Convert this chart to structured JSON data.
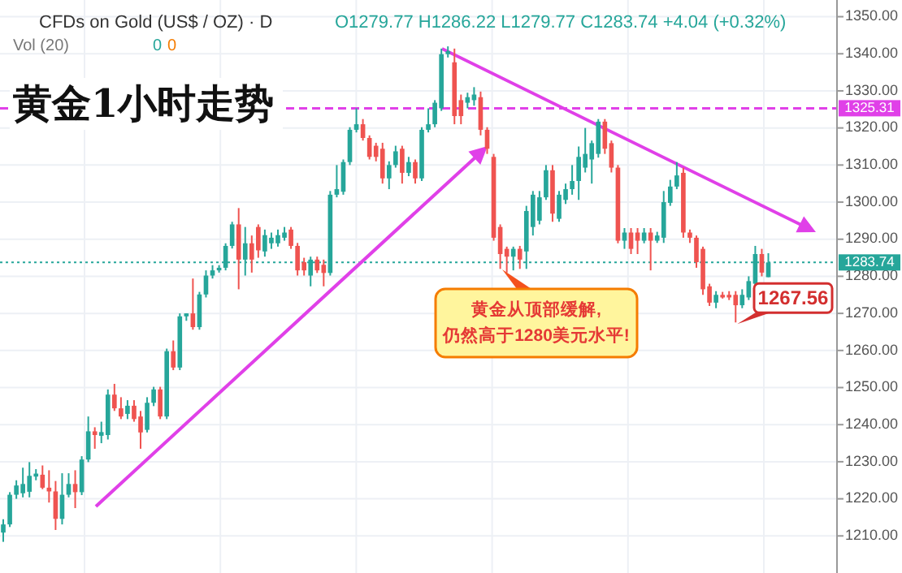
{
  "chart_data": {
    "type": "candlestick",
    "title": "黄金1小时走势",
    "subtitle": "CFDs on Gold (US$ / OZ) · D",
    "annotations": [
      "O1279.77 H1286.22 L1279.77 C1283.74 +4.04 (+0.32%)",
      "Vol (20)",
      "0",
      "0",
      "黄金从顶部缓解,\n仍然高于1280美元水平!",
      "1267.56"
    ],
    "categories": [
      null,
      null,
      null,
      null,
      null,
      null,
      null,
      null,
      null,
      null,
      null,
      null,
      null,
      null,
      null,
      null,
      null,
      null,
      null,
      null,
      null,
      null,
      null,
      null,
      null,
      null,
      null,
      null,
      null,
      null,
      null,
      null,
      null,
      null,
      null,
      null,
      null,
      null,
      null,
      null,
      null,
      null,
      null,
      null,
      null,
      null,
      null,
      null,
      null,
      null,
      null,
      null,
      null,
      null,
      null,
      null,
      null,
      null,
      null,
      null,
      null,
      null,
      null,
      null,
      null,
      null,
      null,
      null,
      null,
      null,
      null,
      null,
      null,
      null,
      null,
      null,
      null,
      null,
      null,
      null,
      null,
      null,
      null,
      null,
      null,
      null,
      null,
      null,
      null,
      null,
      null,
      null,
      null,
      null,
      null,
      null,
      null,
      null,
      null,
      null,
      null,
      null,
      null,
      null,
      null,
      null,
      null,
      null,
      null,
      null,
      null,
      null,
      null,
      null,
      null,
      null,
      null,
      null,
      null,
      null,
      null,
      null,
      null,
      null,
      null,
      null,
      null,
      null
    ],
    "ohlc": [
      [
        1210.9,
        1214.5,
        1208.4,
        1213.1
      ],
      [
        1213.1,
        1221.8,
        1212.4,
        1221.1
      ],
      [
        1221.1,
        1225,
        1220,
        1223.6
      ],
      [
        1221.5,
        1228.4,
        1220.4,
        1224
      ],
      [
        1221.9,
        1229.9,
        1220.4,
        1226.2
      ],
      [
        1226,
        1228,
        1225,
        1226.8
      ],
      [
        1226.5,
        1229,
        1222.6,
        1223
      ],
      [
        1223,
        1227.7,
        1219,
        1222
      ],
      [
        1222,
        1224.8,
        1211.6,
        1214.6
      ],
      [
        1214.6,
        1226.9,
        1213.1,
        1221.1
      ],
      [
        1221.1,
        1226.9,
        1220.4,
        1224
      ],
      [
        1224,
        1227.7,
        1217.5,
        1221.8
      ],
      [
        1221.8,
        1231.5,
        1221,
        1230.6
      ],
      [
        1230.6,
        1242.2,
        1229.9,
        1238.2
      ],
      [
        1238.2,
        1239.3,
        1233.5,
        1237.2
      ],
      [
        1237,
        1240.8,
        1235,
        1238
      ],
      [
        1237.2,
        1249.5,
        1236,
        1248.1
      ],
      [
        1248.1,
        1251,
        1243.7,
        1244.4
      ],
      [
        1244.4,
        1247.4,
        1241.5,
        1242.2
      ],
      [
        1242.9,
        1246.6,
        1241.5,
        1245.1
      ],
      [
        1245.1,
        1246.6,
        1240.8,
        1241.5
      ],
      [
        1242.2,
        1243.7,
        1233.5,
        1237.9
      ],
      [
        1238.6,
        1247.4,
        1237.9,
        1245.9
      ],
      [
        1245.9,
        1250.2,
        1245,
        1249.5
      ],
      [
        1249.5,
        1250.2,
        1241.5,
        1242.2
      ],
      [
        1242.2,
        1260.5,
        1241.5,
        1259.8
      ],
      [
        1259.8,
        1262.7,
        1254.7,
        1255.4
      ],
      [
        1255.4,
        1270,
        1254.7,
        1269.2
      ],
      [
        1269.2,
        1270,
        1268,
        1270
      ],
      [
        1270,
        1279.4,
        1265.6,
        1266.3
      ],
      [
        1266.3,
        1275.8,
        1265.6,
        1275.1
      ],
      [
        1275.1,
        1281.6,
        1274.3,
        1280.2
      ],
      [
        1280.2,
        1283,
        1279.4,
        1281.6
      ],
      [
        1281.6,
        1283,
        1281,
        1282.3
      ],
      [
        1282.3,
        1288.9,
        1281.6,
        1288.2
      ],
      [
        1288.2,
        1294.7,
        1287.5,
        1294
      ],
      [
        1294,
        1298.4,
        1276.5,
        1284.5
      ],
      [
        1284.5,
        1293.3,
        1280.2,
        1288.9
      ],
      [
        1288.9,
        1291,
        1281,
        1284.5
      ],
      [
        1293.3,
        1294,
        1285,
        1287
      ],
      [
        1286.7,
        1292.6,
        1285.3,
        1291.1
      ],
      [
        1288.9,
        1291.8,
        1287.4,
        1290.4
      ],
      [
        1288.9,
        1292.6,
        1288,
        1291.1
      ],
      [
        1290.4,
        1293.3,
        1289.6,
        1291.8
      ],
      [
        1292.6,
        1293.3,
        1287.4,
        1288.2
      ],
      [
        1288.2,
        1289,
        1280.2,
        1281.6
      ],
      [
        1283.8,
        1285,
        1280.2,
        1281.6
      ],
      [
        1280.2,
        1285.3,
        1277.3,
        1284.5
      ],
      [
        1284.5,
        1285.3,
        1280.9,
        1281.6
      ],
      [
        1283.1,
        1284.5,
        1277.3,
        1280.9
      ],
      [
        1280.9,
        1303,
        1280.2,
        1302
      ],
      [
        1302,
        1310,
        1301.3,
        1303.5
      ],
      [
        1302.8,
        1311.5,
        1302,
        1310.8
      ],
      [
        1310.8,
        1320.2,
        1310,
        1319.5
      ],
      [
        1319.5,
        1325.3,
        1318.8,
        1321
      ],
      [
        1321,
        1322.4,
        1316.6,
        1317.3
      ],
      [
        1317.3,
        1318,
        1311.5,
        1312.2
      ],
      [
        1315.2,
        1316,
        1311,
        1312.2
      ],
      [
        1314.4,
        1316,
        1305,
        1306.4
      ],
      [
        1306.4,
        1311,
        1303.5,
        1310
      ],
      [
        1310,
        1315.2,
        1309.3,
        1313.7
      ],
      [
        1314.4,
        1315.2,
        1305,
        1307.9
      ],
      [
        1307.9,
        1312.2,
        1307,
        1310.8
      ],
      [
        1310.8,
        1311.5,
        1305,
        1306.4
      ],
      [
        1306.4,
        1320.2,
        1305.7,
        1319.5
      ],
      [
        1319.5,
        1325.3,
        1318.8,
        1321
      ],
      [
        1321,
        1327.5,
        1320.2,
        1326.8
      ],
      [
        1325.3,
        1341.4,
        1324.6,
        1339.9
      ],
      [
        1339.9,
        1342,
        1339,
        1340.7
      ],
      [
        1337.7,
        1341.4,
        1321,
        1323.2
      ],
      [
        1327.5,
        1329,
        1321,
        1323.2
      ],
      [
        1326.8,
        1329.5,
        1325.3,
        1328.3
      ],
      [
        1327.5,
        1331,
        1326,
        1329
      ],
      [
        1328.3,
        1329.8,
        1318,
        1319.5
      ],
      [
        1319.5,
        1320.2,
        1313,
        1314.4
      ],
      [
        1312.2,
        1313,
        1289.6,
        1290.4
      ],
      [
        1293.3,
        1294,
        1282,
        1286
      ],
      [
        1287.4,
        1288,
        1281,
        1285.3
      ],
      [
        1285.3,
        1288,
        1281.6,
        1287.4
      ],
      [
        1287.4,
        1288.2,
        1282,
        1284.5
      ],
      [
        1286.7,
        1299,
        1282,
        1297.6
      ],
      [
        1293.3,
        1303,
        1291,
        1302
      ],
      [
        1295,
        1303,
        1294,
        1301.3
      ],
      [
        1301.3,
        1310,
        1300.6,
        1308.6
      ],
      [
        1308.6,
        1310,
        1294.7,
        1296.9
      ],
      [
        1295.5,
        1303,
        1294.7,
        1302
      ],
      [
        1300.6,
        1305,
        1299.5,
        1303.5
      ],
      [
        1303.5,
        1310,
        1302,
        1305.7
      ],
      [
        1305.7,
        1315,
        1300.6,
        1312.2
      ],
      [
        1309.3,
        1320,
        1308,
        1313
      ],
      [
        1311.5,
        1316.6,
        1305,
        1315.9
      ],
      [
        1313,
        1322.4,
        1312,
        1321.7
      ],
      [
        1321.7,
        1322.4,
        1313,
        1314.4
      ],
      [
        1315.9,
        1316.6,
        1308,
        1309.3
      ],
      [
        1309.3,
        1310,
        1288.9,
        1289.6
      ],
      [
        1289.6,
        1293,
        1287.4,
        1291.8
      ],
      [
        1291.8,
        1293,
        1286,
        1287.4
      ],
      [
        1291.8,
        1293,
        1286,
        1289.6
      ],
      [
        1289.6,
        1293,
        1288.9,
        1291.8
      ],
      [
        1291.8,
        1293,
        1281.6,
        1289.6
      ],
      [
        1289.6,
        1292,
        1289,
        1291
      ],
      [
        1290.4,
        1303,
        1289,
        1300
      ],
      [
        1299.8,
        1306,
        1299,
        1304.2
      ],
      [
        1304.2,
        1310.8,
        1303.5,
        1307.2
      ],
      [
        1307.9,
        1309.3,
        1290.4,
        1291.8
      ],
      [
        1291.8,
        1292.6,
        1289,
        1290.4
      ],
      [
        1290.4,
        1291,
        1282.3,
        1283.8
      ],
      [
        1287.4,
        1288,
        1275,
        1276.5
      ],
      [
        1277.3,
        1278,
        1272,
        1272.9
      ],
      [
        1272.9,
        1276,
        1271.4,
        1275
      ],
      [
        1275,
        1275.8,
        1274,
        1274.3
      ],
      [
        1275,
        1276,
        1273.6,
        1274.3
      ],
      [
        1275,
        1276,
        1267.56,
        1272.2
      ],
      [
        1272.2,
        1276.5,
        1271.4,
        1275
      ],
      [
        1274.3,
        1280,
        1273.6,
        1278.7
      ],
      [
        1278,
        1288.2,
        1277,
        1286
      ],
      [
        1286,
        1287.4,
        1280,
        1281
      ],
      [
        1279.77,
        1286.22,
        1279.77,
        1283.74
      ],
      null,
      null,
      null,
      null,
      null,
      null,
      null,
      null,
      null,
      null
    ],
    "ref_lines": [
      {
        "axis": "y",
        "value": 1325.31,
        "label": "1325.31",
        "color": "#e040e8",
        "line_style": "dashed"
      },
      {
        "axis": "y",
        "value": 1283.74,
        "label": "1283.74",
        "color": "#26a69a",
        "line_style": "dotted"
      }
    ],
    "ylim": [
      1200,
      1354.5
    ],
    "yticks": [
      {
        "value": 1210,
        "label": "1210.00"
      },
      {
        "value": 1220,
        "label": "1220.00"
      },
      {
        "value": 1230,
        "label": "1230.00"
      },
      {
        "value": 1240,
        "label": "1240.00"
      },
      {
        "value": 1250,
        "label": "1250.00"
      },
      {
        "value": 1260,
        "label": "1260.00"
      },
      {
        "value": 1270,
        "label": "1270.00"
      },
      {
        "value": 1280,
        "label": "1280.00"
      },
      {
        "value": 1290,
        "label": "1290.00"
      },
      {
        "value": 1300,
        "label": "1300.00"
      },
      {
        "value": 1310,
        "label": "1310.00"
      },
      {
        "value": 1320,
        "label": "1320.00"
      },
      {
        "value": 1330,
        "label": "1330.00"
      },
      {
        "value": 1340,
        "label": "1340.00"
      },
      {
        "value": 1350,
        "label": "1350.00"
      }
    ],
    "tick_labels": "y",
    "grid": true
  }
}
